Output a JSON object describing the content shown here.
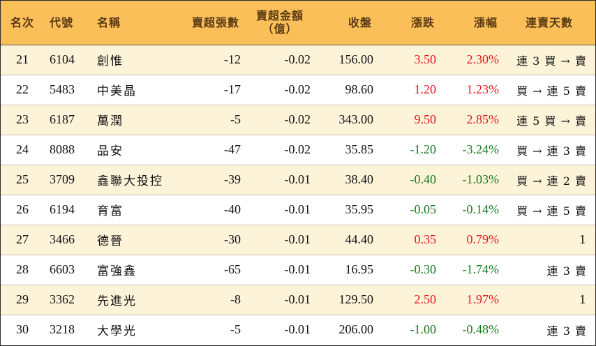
{
  "headers": {
    "rank": "名次",
    "code": "代號",
    "name": "名稱",
    "net_sell_lots": "賣超張數",
    "net_sell_amount_line1": "賣超金額",
    "net_sell_amount_line2": "（億）",
    "close": "收盤",
    "change": "漲跌",
    "change_pct": "漲幅",
    "streak": "連賣天數"
  },
  "colors": {
    "header_bg": "#fbbf5a",
    "row_alt_bg": "#fdf3d9",
    "up": "#e8141e",
    "down": "#137a1c"
  },
  "rows": [
    {
      "rank": "21",
      "code": "6104",
      "name": "創惟",
      "lots": "-12",
      "amount": "-0.02",
      "close": "156.00",
      "change": "3.50",
      "pct": "2.30%",
      "dir": "up",
      "streak": "連 3 買 → 賣"
    },
    {
      "rank": "22",
      "code": "5483",
      "name": "中美晶",
      "lots": "-17",
      "amount": "-0.02",
      "close": "98.60",
      "change": "1.20",
      "pct": "1.23%",
      "dir": "up",
      "streak": "買 → 連 5 賣"
    },
    {
      "rank": "23",
      "code": "6187",
      "name": "萬潤",
      "lots": "-5",
      "amount": "-0.02",
      "close": "343.00",
      "change": "9.50",
      "pct": "2.85%",
      "dir": "up",
      "streak": "連 5 買 → 賣"
    },
    {
      "rank": "24",
      "code": "8088",
      "name": "品安",
      "lots": "-47",
      "amount": "-0.02",
      "close": "35.85",
      "change": "-1.20",
      "pct": "-3.24%",
      "dir": "down",
      "streak": "買 → 連 3 賣"
    },
    {
      "rank": "25",
      "code": "3709",
      "name": "鑫聯大投控",
      "lots": "-39",
      "amount": "-0.01",
      "close": "38.40",
      "change": "-0.40",
      "pct": "-1.03%",
      "dir": "down",
      "streak": "買 → 連 2 賣"
    },
    {
      "rank": "26",
      "code": "6194",
      "name": "育富",
      "lots": "-40",
      "amount": "-0.01",
      "close": "35.95",
      "change": "-0.05",
      "pct": "-0.14%",
      "dir": "down",
      "streak": "買 → 連 5 賣"
    },
    {
      "rank": "27",
      "code": "3466",
      "name": "德晉",
      "lots": "-30",
      "amount": "-0.01",
      "close": "44.40",
      "change": "0.35",
      "pct": "0.79%",
      "dir": "up",
      "streak": "1"
    },
    {
      "rank": "28",
      "code": "6603",
      "name": "富強鑫",
      "lots": "-65",
      "amount": "-0.01",
      "close": "16.95",
      "change": "-0.30",
      "pct": "-1.74%",
      "dir": "down",
      "streak": "連 3 賣"
    },
    {
      "rank": "29",
      "code": "3362",
      "name": "先進光",
      "lots": "-8",
      "amount": "-0.01",
      "close": "129.50",
      "change": "2.50",
      "pct": "1.97%",
      "dir": "up",
      "streak": "1"
    },
    {
      "rank": "30",
      "code": "3218",
      "name": "大學光",
      "lots": "-5",
      "amount": "-0.01",
      "close": "206.00",
      "change": "-1.00",
      "pct": "-0.48%",
      "dir": "down",
      "streak": "連 3 賣"
    }
  ]
}
